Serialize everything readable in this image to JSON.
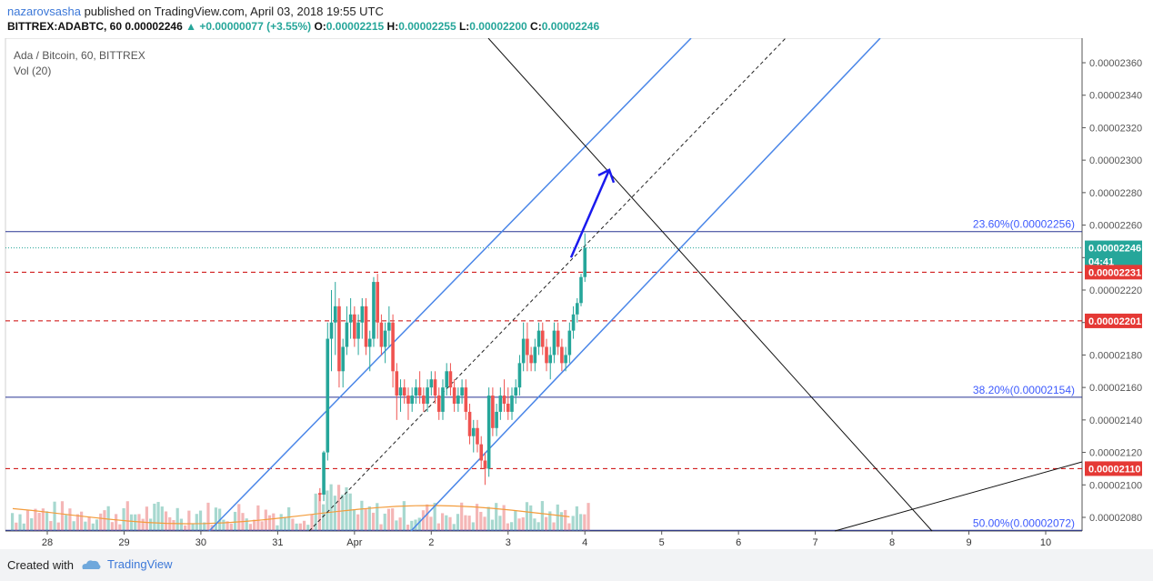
{
  "header": {
    "user": "nazarovsasha",
    "published": "published on TradingView.com, April 03, 2018 19:55 UTC",
    "symbol": "BITTREX:ADABTC, 60",
    "last": "0.00002246",
    "change": "+0.00000077 (+3.55%)",
    "open_label": "O:",
    "open": "0.00002215",
    "high_label": "H:",
    "high": "0.00002255",
    "low_label": "L:",
    "low": "0.00002200",
    "close_label": "C:",
    "close": "0.00002246"
  },
  "overlay": {
    "title": "Ada / Bitcoin, 60, BITTREX",
    "vol": "Vol (20)"
  },
  "footer": {
    "created": "Created with",
    "brand": "TradingView"
  },
  "colors": {
    "up": "#26a69a",
    "down": "#ef5350",
    "channel": "#4a86e8",
    "fib": "#283593",
    "resistance": "#cc0000",
    "arrow": "#1a1aee"
  },
  "chart_data": {
    "type": "candlestick",
    "x_ticks": [
      "28",
      "29",
      "30",
      "31",
      "Apr",
      "2",
      "3",
      "4",
      "5",
      "6",
      "7",
      "8",
      "9",
      "10"
    ],
    "y_ticks": [
      "0.00002360",
      "0.00002340",
      "0.00002320",
      "0.00002300",
      "0.00002280",
      "0.00002260",
      "0.00002240",
      "0.00002220",
      "0.00002200",
      "0.00002180",
      "0.00002160",
      "0.00002140",
      "0.00002120",
      "0.00002100",
      "0.00002080"
    ],
    "ylim": [
      2.07e-05,
      2.37e-05
    ],
    "price_labels": [
      {
        "text": "0.00002246",
        "value": 2.246e-05,
        "color": "#26a69a"
      },
      {
        "text": "04:41",
        "value": 2.246e-05,
        "color": "#26a69a"
      },
      {
        "text": "0.00002231",
        "value": 2.231e-05,
        "color": "#e53935"
      },
      {
        "text": "0.00002201",
        "value": 2.201e-05,
        "color": "#e53935"
      },
      {
        "text": "0.00002110",
        "value": 2.11e-05,
        "color": "#e53935"
      }
    ],
    "fib_levels": [
      {
        "label": "23.60%(0.00002256)",
        "value": 2.256e-05
      },
      {
        "label": "38.20%(0.00002154)",
        "value": 2.154e-05
      },
      {
        "label": "50.00%(0.00002072)",
        "value": 2.072e-05
      }
    ],
    "resistance_levels": [
      2.231e-05,
      2.201e-05,
      2.11e-05
    ],
    "candles": [
      [
        31.55,
        2.095,
        2.098,
        2.09,
        2.094
      ],
      [
        31.6,
        2.094,
        2.121,
        2.09,
        2.12
      ],
      [
        31.65,
        2.12,
        2.2,
        2.115,
        2.19
      ],
      [
        31.7,
        2.19,
        2.22,
        2.17,
        2.2
      ],
      [
        31.75,
        2.2,
        2.225,
        2.18,
        2.21
      ],
      [
        31.8,
        2.21,
        2.215,
        2.16,
        2.17
      ],
      [
        31.85,
        2.17,
        2.19,
        2.16,
        2.185
      ],
      [
        31.9,
        2.185,
        2.21,
        2.18,
        2.2
      ],
      [
        31.95,
        2.2,
        2.215,
        2.19,
        2.205
      ],
      [
        32.0,
        2.205,
        2.21,
        2.185,
        2.19
      ],
      [
        32.05,
        2.19,
        2.205,
        2.18,
        2.2
      ],
      [
        32.1,
        2.2,
        2.215,
        2.19,
        2.21
      ],
      [
        32.15,
        2.21,
        2.215,
        2.18,
        2.185
      ],
      [
        32.2,
        2.185,
        2.195,
        2.17,
        2.19
      ],
      [
        32.25,
        2.19,
        2.228,
        2.185,
        2.225
      ],
      [
        32.3,
        2.225,
        2.23,
        2.19,
        2.2
      ],
      [
        32.35,
        2.2,
        2.205,
        2.18,
        2.185
      ],
      [
        32.4,
        2.185,
        2.2,
        2.175,
        2.195
      ],
      [
        32.45,
        2.195,
        2.21,
        2.185,
        2.2
      ],
      [
        32.5,
        2.2,
        2.205,
        2.16,
        2.17
      ],
      [
        32.55,
        2.17,
        2.175,
        2.14,
        2.155
      ],
      [
        32.6,
        2.155,
        2.165,
        2.145,
        2.16
      ],
      [
        32.65,
        2.16,
        2.165,
        2.15,
        2.155
      ],
      [
        32.7,
        2.155,
        2.16,
        2.14,
        2.15
      ],
      [
        32.75,
        2.15,
        2.16,
        2.145,
        2.155
      ],
      [
        32.8,
        2.155,
        2.165,
        2.15,
        2.16
      ],
      [
        32.85,
        2.16,
        2.17,
        2.15,
        2.155
      ],
      [
        32.9,
        2.155,
        2.16,
        2.145,
        2.15
      ],
      [
        32.95,
        2.15,
        2.165,
        2.145,
        2.16
      ],
      [
        33.0,
        2.16,
        2.17,
        2.155,
        2.165
      ],
      [
        33.05,
        2.165,
        2.17,
        2.15,
        2.155
      ],
      [
        33.1,
        2.155,
        2.16,
        2.14,
        2.145
      ],
      [
        33.15,
        2.145,
        2.165,
        2.14,
        2.16
      ],
      [
        33.2,
        2.16,
        2.175,
        2.155,
        2.17
      ],
      [
        33.25,
        2.17,
        2.175,
        2.155,
        2.16
      ],
      [
        33.3,
        2.16,
        2.165,
        2.145,
        2.15
      ],
      [
        33.35,
        2.15,
        2.16,
        2.145,
        2.155
      ],
      [
        33.4,
        2.155,
        2.165,
        2.15,
        2.16
      ],
      [
        33.45,
        2.16,
        2.165,
        2.14,
        2.145
      ],
      [
        33.5,
        2.145,
        2.15,
        2.125,
        2.13
      ],
      [
        33.55,
        2.13,
        2.14,
        2.12,
        2.135
      ],
      [
        33.6,
        2.135,
        2.14,
        2.12,
        2.125
      ],
      [
        33.65,
        2.125,
        2.13,
        2.11,
        2.115
      ],
      [
        33.7,
        2.115,
        2.12,
        2.1,
        2.11
      ],
      [
        33.75,
        2.11,
        2.16,
        2.105,
        2.155
      ],
      [
        33.8,
        2.155,
        2.16,
        2.13,
        2.135
      ],
      [
        33.85,
        2.135,
        2.15,
        2.13,
        2.145
      ],
      [
        33.9,
        2.145,
        2.16,
        2.14,
        2.155
      ],
      [
        33.95,
        2.155,
        2.165,
        2.145,
        2.15
      ],
      [
        34.0,
        2.15,
        2.16,
        2.14,
        2.145
      ],
      [
        34.05,
        2.145,
        2.16,
        2.14,
        2.155
      ],
      [
        34.1,
        2.155,
        2.165,
        2.15,
        2.16
      ],
      [
        34.15,
        2.16,
        2.18,
        2.155,
        2.175
      ],
      [
        34.2,
        2.175,
        2.2,
        2.17,
        2.19
      ],
      [
        34.25,
        2.19,
        2.2,
        2.17,
        2.18
      ],
      [
        34.3,
        2.18,
        2.185,
        2.17,
        2.175
      ],
      [
        34.35,
        2.175,
        2.19,
        2.17,
        2.185
      ],
      [
        34.4,
        2.185,
        2.2,
        2.18,
        2.195
      ],
      [
        34.45,
        2.195,
        2.2,
        2.18,
        2.185
      ],
      [
        34.5,
        2.185,
        2.19,
        2.17,
        2.175
      ],
      [
        34.55,
        2.175,
        2.185,
        2.165,
        2.18
      ],
      [
        34.6,
        2.18,
        2.2,
        2.175,
        2.195
      ],
      [
        34.65,
        2.195,
        2.2,
        2.18,
        2.185
      ],
      [
        34.7,
        2.185,
        2.19,
        2.17,
        2.175
      ],
      [
        34.75,
        2.175,
        2.185,
        2.17,
        2.18
      ],
      [
        34.8,
        2.18,
        2.2,
        2.175,
        2.195
      ],
      [
        34.85,
        2.195,
        2.21,
        2.19,
        2.205
      ],
      [
        34.9,
        2.205,
        2.215,
        2.2,
        2.212
      ],
      [
        34.95,
        2.212,
        2.23,
        2.21,
        2.228
      ],
      [
        35.0,
        2.228,
        2.255,
        2.225,
        2.246
      ]
    ],
    "volume_scale": "relative"
  }
}
